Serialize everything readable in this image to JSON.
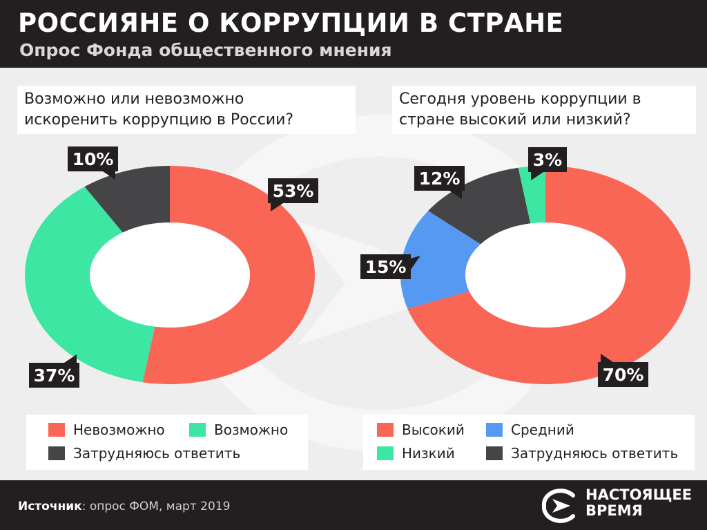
{
  "header": {
    "title": "РОССИЯНЕ О КОРРУПЦИИ В СТРАНЕ",
    "subtitle": "Опрос Фонда общественного мнения"
  },
  "colors": {
    "red": "#fa6655",
    "green": "#3ee6a4",
    "blue": "#5599f2",
    "dark": "#454447",
    "header_bg": "#231f20"
  },
  "chart_data": [
    {
      "type": "pie",
      "question": [
        "Возможно или невозможно",
        "искоренить коррупцию в России?"
      ],
      "categories": [
        "Невозможно",
        "Возможно",
        "Затрудняюсь ответить"
      ],
      "values": [
        53,
        37,
        10
      ],
      "labels": [
        "53%",
        "37%",
        "10%"
      ],
      "colors": [
        "#fa6655",
        "#3ee6a4",
        "#454447"
      ],
      "legend": [
        "Невозможно",
        "Возможно",
        "Затрудняюсь ответить"
      ]
    },
    {
      "type": "pie",
      "question": [
        "Сегодня уровень коррупции в",
        "стране высокий или низкий?"
      ],
      "categories": [
        "Высокий",
        "Средний",
        "Затрудняюсь ответить",
        "Низкий"
      ],
      "values": [
        70,
        15,
        12,
        3
      ],
      "labels": [
        "70%",
        "15%",
        "12%",
        "3%"
      ],
      "colors": [
        "#fa6655",
        "#5599f2",
        "#454447",
        "#3ee6a4"
      ],
      "legend": [
        "Высокий",
        "Средний",
        "Низкий",
        "Затрудняюсь ответить"
      ]
    }
  ],
  "footer": {
    "source_label": "Источник",
    "source_text": ": опрос ФОМ, март 2019",
    "logo_line1": "НАСТОЯЩЕЕ",
    "logo_line2": "ВРЕМЯ"
  }
}
